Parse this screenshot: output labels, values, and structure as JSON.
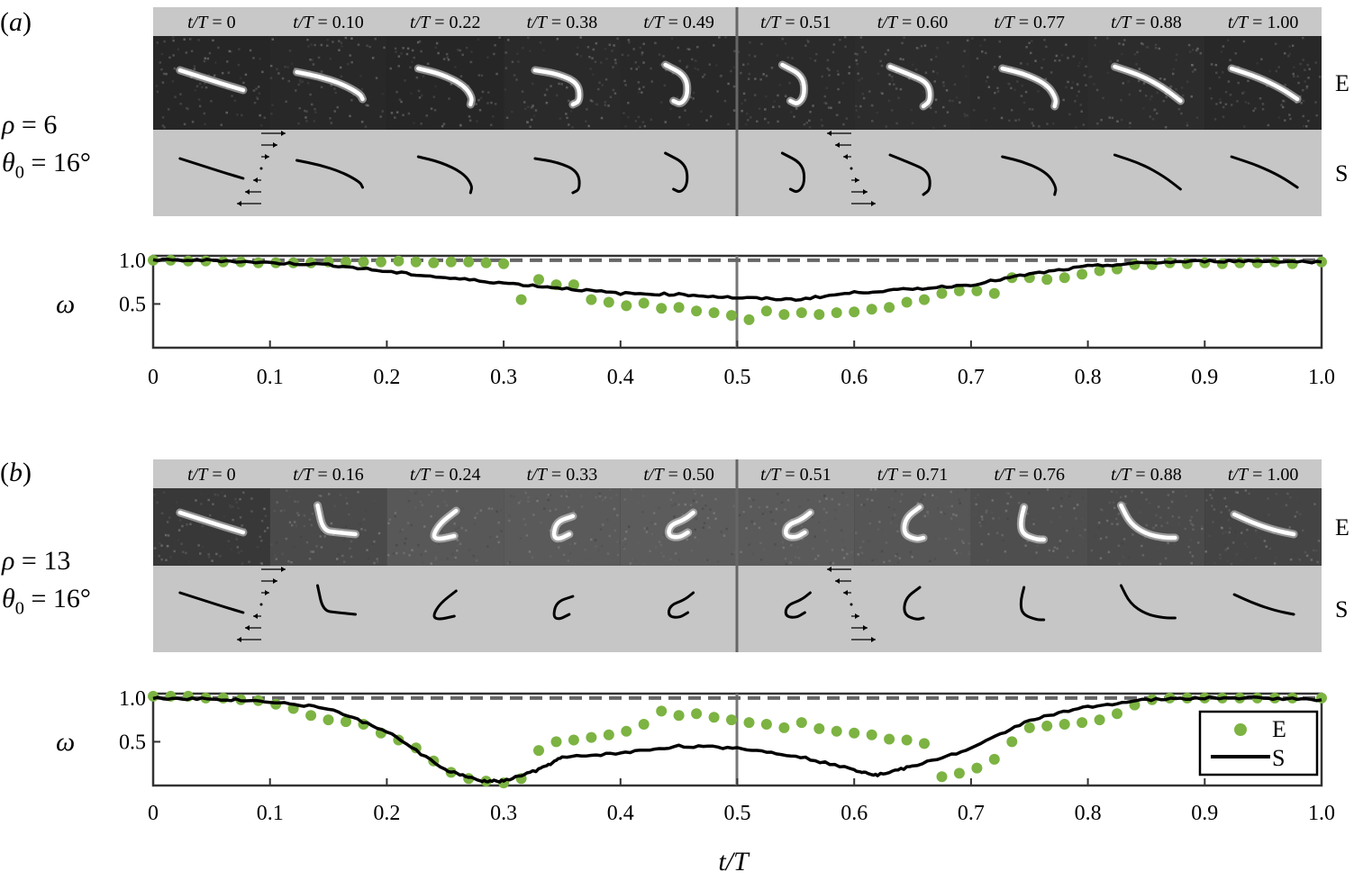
{
  "panels": [
    {
      "id": "a",
      "label": "(a)",
      "rho_label": "ρ = 6",
      "theta_label": "θ0 = 16°",
      "experiment_label": "E",
      "simulation_label": "S",
      "frame_labels": [
        "t/T = 0",
        "t/T = 0.10",
        "t/T = 0.22",
        "t/T = 0.38",
        "t/T = 0.49",
        "t/T = 0.51",
        "t/T = 0.60",
        "t/T = 0.77",
        "t/T = 0.88",
        "t/T = 1.00"
      ],
      "chart_data": {
        "type": "scatter",
        "ylabel": "ω",
        "xlim": [
          0,
          1
        ],
        "ylim": [
          0,
          1.05
        ],
        "x_ticks": [
          "0",
          "0.1",
          "0.2",
          "0.3",
          "0.4",
          "0.5",
          "0.6",
          "0.7",
          "0.8",
          "0.9",
          "1.0"
        ],
        "y_ticks": [
          "0.5",
          "1.0"
        ],
        "reference_line": 1.0,
        "series": [
          {
            "name": "E",
            "kind": "points",
            "color": "#7cb342",
            "x": [
              0,
              0.015,
              0.03,
              0.045,
              0.06,
              0.075,
              0.09,
              0.105,
              0.12,
              0.135,
              0.15,
              0.165,
              0.18,
              0.195,
              0.21,
              0.225,
              0.24,
              0.255,
              0.27,
              0.285,
              0.3,
              0.315,
              0.33,
              0.345,
              0.36,
              0.375,
              0.39,
              0.405,
              0.42,
              0.435,
              0.45,
              0.465,
              0.48,
              0.495,
              0.51,
              0.525,
              0.54,
              0.555,
              0.57,
              0.585,
              0.6,
              0.615,
              0.63,
              0.645,
              0.66,
              0.675,
              0.69,
              0.705,
              0.72,
              0.735,
              0.75,
              0.765,
              0.78,
              0.795,
              0.81,
              0.825,
              0.84,
              0.855,
              0.87,
              0.885,
              0.9,
              0.915,
              0.93,
              0.945,
              0.96,
              0.975,
              1.0
            ],
            "y": [
              1.0,
              1.0,
              0.99,
              0.99,
              0.98,
              0.98,
              0.97,
              0.97,
              0.97,
              0.97,
              0.98,
              0.98,
              0.98,
              0.98,
              0.99,
              0.98,
              0.97,
              0.98,
              0.98,
              0.97,
              0.96,
              0.55,
              0.78,
              0.72,
              0.72,
              0.55,
              0.52,
              0.48,
              0.51,
              0.45,
              0.46,
              0.42,
              0.4,
              0.37,
              0.32,
              0.42,
              0.38,
              0.4,
              0.38,
              0.4,
              0.41,
              0.44,
              0.46,
              0.52,
              0.55,
              0.62,
              0.65,
              0.65,
              0.62,
              0.8,
              0.8,
              0.78,
              0.8,
              0.84,
              0.88,
              0.9,
              0.95,
              0.95,
              0.97,
              0.96,
              0.97,
              0.96,
              0.97,
              0.97,
              0.98,
              0.96,
              0.98
            ]
          },
          {
            "name": "S",
            "kind": "line",
            "color": "#000000",
            "x": [
              0,
              0.05,
              0.1,
              0.15,
              0.2,
              0.25,
              0.3,
              0.35,
              0.4,
              0.45,
              0.5,
              0.55,
              0.6,
              0.65,
              0.7,
              0.75,
              0.8,
              0.85,
              0.9,
              0.95,
              1.0
            ],
            "y": [
              1.0,
              1.0,
              0.97,
              0.95,
              0.87,
              0.8,
              0.74,
              0.68,
              0.62,
              0.61,
              0.57,
              0.55,
              0.63,
              0.67,
              0.72,
              0.84,
              0.93,
              0.97,
              0.99,
              0.99,
              0.98
            ]
          }
        ]
      }
    },
    {
      "id": "b",
      "label": "(b)",
      "rho_label": "ρ = 13",
      "theta_label": "θ0 = 16°",
      "experiment_label": "E",
      "simulation_label": "S",
      "frame_labels": [
        "t/T = 0",
        "t/T = 0.16",
        "t/T = 0.24",
        "t/T = 0.33",
        "t/T = 0.50",
        "t/T = 0.51",
        "t/T = 0.71",
        "t/T = 0.76",
        "t/T = 0.88",
        "t/T = 1.00"
      ],
      "chart_data": {
        "type": "scatter",
        "ylabel": "ω",
        "xlabel": "t/T",
        "xlim": [
          0,
          1
        ],
        "ylim": [
          0,
          1.05
        ],
        "x_ticks": [
          "0",
          "0.1",
          "0.2",
          "0.3",
          "0.4",
          "0.5",
          "0.6",
          "0.7",
          "0.8",
          "0.9",
          "1.0"
        ],
        "y_ticks": [
          "0.5",
          "1.0"
        ],
        "reference_line": 1.0,
        "legend": {
          "position": "bottom-right",
          "entries": [
            "E",
            "S"
          ]
        },
        "series": [
          {
            "name": "E",
            "kind": "points",
            "color": "#7cb342",
            "x": [
              0,
              0.015,
              0.03,
              0.045,
              0.06,
              0.075,
              0.09,
              0.105,
              0.12,
              0.135,
              0.15,
              0.165,
              0.18,
              0.195,
              0.21,
              0.225,
              0.24,
              0.255,
              0.27,
              0.285,
              0.3,
              0.315,
              0.33,
              0.345,
              0.36,
              0.375,
              0.39,
              0.405,
              0.42,
              0.435,
              0.45,
              0.465,
              0.48,
              0.495,
              0.51,
              0.525,
              0.54,
              0.555,
              0.57,
              0.585,
              0.6,
              0.615,
              0.63,
              0.645,
              0.66,
              0.675,
              0.69,
              0.705,
              0.72,
              0.735,
              0.75,
              0.765,
              0.78,
              0.795,
              0.81,
              0.825,
              0.84,
              0.855,
              0.87,
              0.885,
              0.9,
              0.915,
              0.93,
              0.945,
              0.96,
              0.975,
              1.0
            ],
            "y": [
              1.02,
              1.02,
              1.02,
              1.0,
              1.0,
              0.98,
              0.97,
              0.93,
              0.88,
              0.8,
              0.75,
              0.73,
              0.7,
              0.6,
              0.52,
              0.43,
              0.28,
              0.15,
              0.08,
              0.05,
              0.03,
              0.08,
              0.4,
              0.5,
              0.52,
              0.55,
              0.58,
              0.62,
              0.7,
              0.85,
              0.8,
              0.82,
              0.78,
              0.75,
              0.72,
              0.7,
              0.66,
              0.72,
              0.65,
              0.62,
              0.6,
              0.58,
              0.53,
              0.52,
              0.48,
              0.1,
              0.14,
              0.2,
              0.3,
              0.5,
              0.66,
              0.68,
              0.7,
              0.72,
              0.75,
              0.82,
              0.92,
              0.98,
              1.0,
              1.0,
              1.0,
              1.0,
              1.0,
              1.0,
              1.0,
              1.0,
              1.0
            ]
          },
          {
            "name": "S",
            "kind": "line",
            "color": "#000000",
            "x": [
              0,
              0.05,
              0.1,
              0.15,
              0.2,
              0.25,
              0.28,
              0.3,
              0.33,
              0.35,
              0.4,
              0.45,
              0.5,
              0.55,
              0.6,
              0.62,
              0.65,
              0.7,
              0.75,
              0.8,
              0.85,
              0.9,
              0.95,
              1.0
            ],
            "y": [
              1.0,
              0.99,
              0.96,
              0.88,
              0.62,
              0.18,
              0.05,
              0.05,
              0.18,
              0.32,
              0.37,
              0.45,
              0.43,
              0.34,
              0.18,
              0.12,
              0.22,
              0.42,
              0.75,
              0.9,
              0.98,
              1.0,
              1.0,
              0.98
            ]
          }
        ]
      }
    }
  ],
  "x_axis_title": "t/T"
}
